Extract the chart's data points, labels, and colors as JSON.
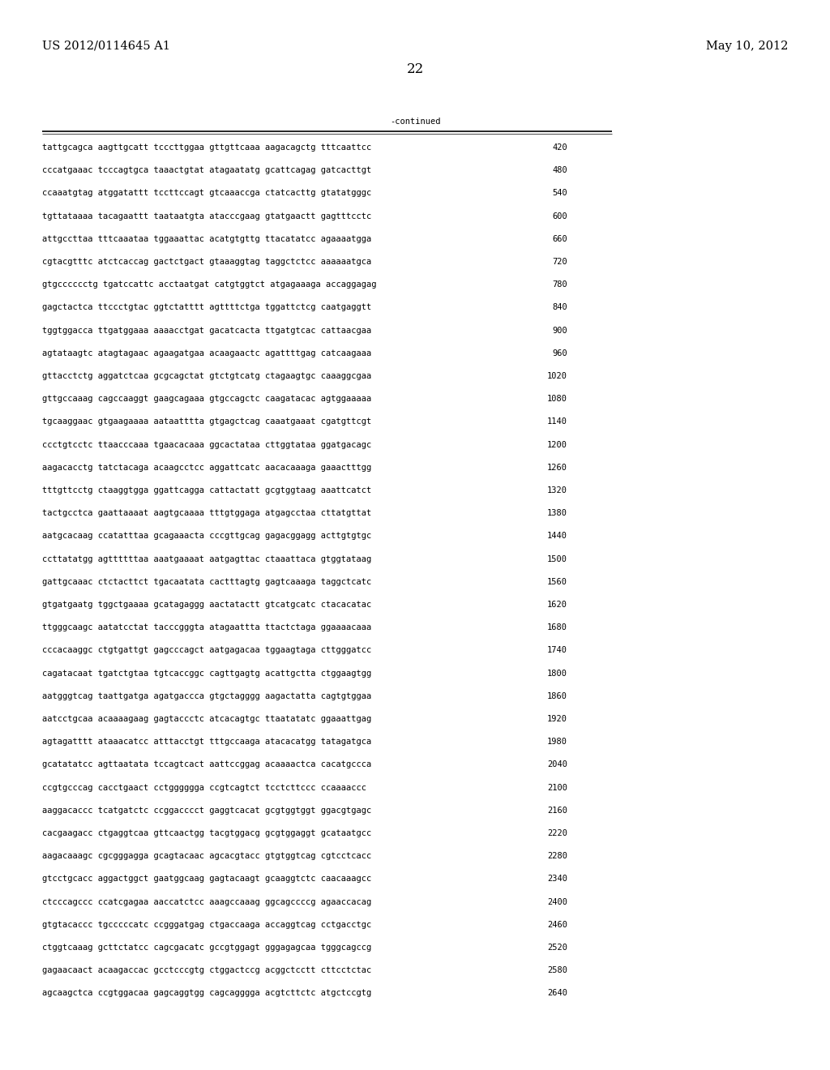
{
  "header_left": "US 2012/0114645 A1",
  "header_right": "May 10, 2012",
  "page_number": "22",
  "continued_label": "-continued",
  "background_color": "#ffffff",
  "text_color": "#000000",
  "font_size_header": 10.5,
  "font_size_body": 7.5,
  "font_size_page": 12,
  "sequence_lines": [
    [
      "tattgcagca aagttgcatt tcccttggaa gttgttcaaa aagacagctg tttcaattcc",
      "420"
    ],
    [
      "cccatgaaac tcccagtgca taaactgtat atagaatatg gcattcagag gatcacttgt",
      "480"
    ],
    [
      "ccaaatgtag atggatattt tccttccagt gtcaaaccga ctatcacttg gtatatgggc",
      "540"
    ],
    [
      "tgttataaaa tacagaattt taataatgta atacccgaag gtatgaactt gagtttcctc",
      "600"
    ],
    [
      "attgccttaa tttcaaataa tggaaattac acatgtgttg ttacatatcc agaaaatgga",
      "660"
    ],
    [
      "cgtacgtttc atctcaccag gactctgact gtaaaggtag taggctctcc aaaaaatgca",
      "720"
    ],
    [
      "gtgcccccctg tgatccattc acctaatgat catgtggtct atgagaaaga accaggagag",
      "780"
    ],
    [
      "gagctactca ttccctgtac ggtctatttt agttttctga tggattctcg caatgaggtt",
      "840"
    ],
    [
      "tggtggacca ttgatggaaa aaaacctgat gacatcacta ttgatgtcac cattaacgaa",
      "900"
    ],
    [
      "agtataagtc atagtagaac agaagatgaa acaagaactc agattttgag catcaagaaa",
      "960"
    ],
    [
      "gttacctctg aggatctcaa gcgcagctat gtctgtcatg ctagaagtgc caaaggcgaa",
      "1020"
    ],
    [
      "gttgccaaag cagccaaggt gaagcagaaa gtgccagctc caagatacac agtggaaaaa",
      "1080"
    ],
    [
      "tgcaaggaac gtgaagaaaa aataatttta gtgagctcag caaatgaaat cgatgttcgt",
      "1140"
    ],
    [
      "ccctgtcctc ttaacccaaa tgaacacaaa ggcactataa cttggtataa ggatgacagc",
      "1200"
    ],
    [
      "aagacacctg tatctacaga acaagcctcc aggattcatc aacacaaaga gaaactttgg",
      "1260"
    ],
    [
      "tttgttcctg ctaaggtgga ggattcagga cattactatt gcgtggtaag aaattcatct",
      "1320"
    ],
    [
      "tactgcctca gaattaaaat aagtgcaaaa tttgtggaga atgagcctaa cttatgttat",
      "1380"
    ],
    [
      "aatgcacaag ccatatttaa gcagaaacta cccgttgcag gagacggagg acttgtgtgc",
      "1440"
    ],
    [
      "ccttatatgg agttttttaa aaatgaaaat aatgagttac ctaaattaca gtggtataag",
      "1500"
    ],
    [
      "gattgcaaac ctctacttct tgacaatata cactttagtg gagtcaaaga taggctcatc",
      "1560"
    ],
    [
      "gtgatgaatg tggctgaaaa gcatagaggg aactatactt gtcatgcatc ctacacatac",
      "1620"
    ],
    [
      "ttgggcaagc aatatcctat tacccgggta atagaattta ttactctaga ggaaaacaaa",
      "1680"
    ],
    [
      "cccacaaggc ctgtgattgt gagcccagct aatgagacaa tggaagtaga cttgggatcc",
      "1740"
    ],
    [
      "cagatacaat tgatctgtaa tgtcaccggc cagttgagtg acattgctta ctggaagtgg",
      "1800"
    ],
    [
      "aatgggtcag taattgatga agatgaccca gtgctagggg aagactatta cagtgtggaa",
      "1860"
    ],
    [
      "aatcctgcaa acaaaagaag gagtaccctc atcacagtgc ttaatatatc ggaaattgag",
      "1920"
    ],
    [
      "agtagatttt ataaacatcc atttacctgt tttgccaaga atacacatgg tatagatgca",
      "1980"
    ],
    [
      "gcatatatcc agttaatata tccagtcact aattccggag acaaaactca cacatgccca",
      "2040"
    ],
    [
      "ccgtgcccag cacctgaact cctgggggga ccgtcagtct tcctcttccc ccaaaaccc",
      "2100"
    ],
    [
      "aaggacaccc tcatgatctc ccggacccct gaggtcacat gcgtggtggt ggacgtgagc",
      "2160"
    ],
    [
      "cacgaagacc ctgaggtcaa gttcaactgg tacgtggacg gcgtggaggt gcataatgcc",
      "2220"
    ],
    [
      "aagacaaagc cgcgggagga gcagtacaac agcacgtacc gtgtggtcag cgtcctcacc",
      "2280"
    ],
    [
      "gtcctgcacc aggactggct gaatggcaag gagtacaagt gcaaggtctc caacaaagcc",
      "2340"
    ],
    [
      "ctcccagccc ccatcgagaa aaccatctcc aaagccaaag ggcagccccg agaaccacag",
      "2400"
    ],
    [
      "gtgtacaccc tgcccccatc ccgggatgag ctgaccaaga accaggtcag cctgacctgc",
      "2460"
    ],
    [
      "ctggtcaaag gcttctatcc cagcgacatc gccgtggagt gggagagcaa tgggcagccg",
      "2520"
    ],
    [
      "gagaacaact acaagaccac gcctcccgtg ctggactccg acggctcctt cttcctctac",
      "2580"
    ],
    [
      "agcaagctca ccgtggacaa gagcaggtgg cagcagggga acgtcttctc atgctccgtg",
      "2640"
    ]
  ]
}
